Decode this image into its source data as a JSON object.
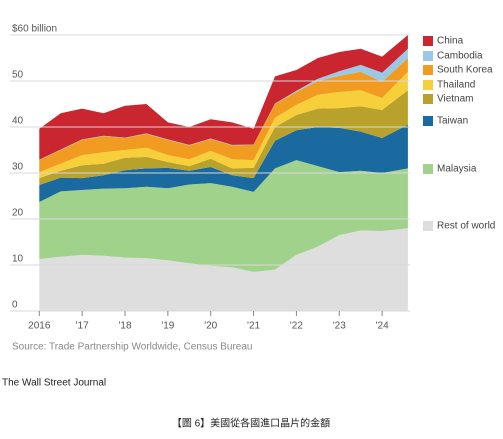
{
  "chart_data": {
    "type": "stacked_area",
    "x": [
      2016,
      2016.5,
      2017,
      2017.5,
      2018,
      2018.5,
      2019,
      2019.5,
      2020,
      2020.5,
      2021,
      2021.5,
      2022,
      2022.5,
      2023,
      2023.5,
      2024,
      2024.6
    ],
    "series": [
      {
        "name": "Rest of world",
        "color": "#dedede",
        "values": [
          11.3,
          11.8,
          12.2,
          12.0,
          11.6,
          11.5,
          11.0,
          10.4,
          9.8,
          9.5,
          8.5,
          9.0,
          12.2,
          14.0,
          16.5,
          17.5,
          17.4,
          18.0
        ]
      },
      {
        "name": "Malaysia",
        "color": "#a0d28c",
        "values": [
          12.4,
          14.2,
          14.1,
          14.6,
          15.1,
          15.5,
          15.7,
          17.1,
          18.0,
          17.5,
          17.4,
          22.0,
          20.6,
          17.5,
          13.7,
          13.0,
          12.6,
          13.0
        ]
      },
      {
        "name": "Taiwan",
        "color": "#1a6aa0",
        "values": [
          3.7,
          3.0,
          2.6,
          2.9,
          3.9,
          4.0,
          4.4,
          3.0,
          3.5,
          2.5,
          3.0,
          6.0,
          6.5,
          8.5,
          9.6,
          8.5,
          7.6,
          9.5
        ]
      },
      {
        "name": "Vietnam",
        "color": "#b9a22b",
        "values": [
          1.5,
          1.5,
          2.8,
          2.5,
          2.7,
          2.5,
          1.3,
          1.0,
          1.8,
          1.5,
          2.2,
          3.0,
          3.3,
          4.0,
          4.3,
          5.5,
          6.1,
          7.5
        ]
      },
      {
        "name": "Thailand",
        "color": "#f6cf3b",
        "values": [
          1.3,
          1.5,
          2.2,
          2.5,
          1.7,
          2.0,
          1.5,
          1.5,
          1.7,
          2.0,
          1.7,
          2.0,
          2.2,
          3.0,
          3.5,
          3.5,
          2.6,
          4.0
        ]
      },
      {
        "name": "South Korea",
        "color": "#f29b21",
        "values": [
          2.6,
          3.0,
          3.3,
          3.5,
          2.6,
          3.0,
          3.3,
          3.0,
          2.6,
          3.0,
          3.3,
          3.0,
          2.8,
          3.0,
          3.5,
          4.0,
          3.5,
          3.0
        ]
      },
      {
        "name": "Cambodia",
        "color": "#9ac8e6",
        "values": [
          0.1,
          0.1,
          0.1,
          0.1,
          0.1,
          0.1,
          0.1,
          0.1,
          0.1,
          0.1,
          0.1,
          0.1,
          0.3,
          0.5,
          1.0,
          1.5,
          2.0,
          2.0
        ]
      },
      {
        "name": "China",
        "color": "#c9262f",
        "values": [
          6.7,
          7.9,
          6.7,
          4.9,
          6.9,
          6.4,
          3.7,
          3.9,
          4.2,
          4.9,
          3.4,
          5.9,
          4.5,
          4.5,
          4.2,
          3.5,
          3.5,
          3.0
        ]
      }
    ],
    "xlim": [
      2015.9,
      2024.65
    ],
    "xticks": [
      {
        "value": 2016,
        "label": "2016"
      },
      {
        "value": 2017,
        "label": "'17"
      },
      {
        "value": 2018,
        "label": "'18"
      },
      {
        "value": 2019,
        "label": "'19"
      },
      {
        "value": 2020,
        "label": "'20"
      },
      {
        "value": 2021,
        "label": "'21"
      },
      {
        "value": 2022,
        "label": "'22"
      },
      {
        "value": 2023,
        "label": "'23"
      },
      {
        "value": 2024,
        "label": "'24"
      }
    ],
    "ylim": [
      0,
      60
    ],
    "yticks": [
      0,
      10,
      20,
      30,
      40,
      50,
      {
        "value": 60,
        "label": "$60 billion"
      }
    ],
    "grid": true,
    "legend": "right",
    "source": "Source: Trade Partnership Worldwide, Census Bureau"
  },
  "credit": "The Wall Street Journal",
  "caption": "【圖 6】美國從各國進口晶片的金額"
}
